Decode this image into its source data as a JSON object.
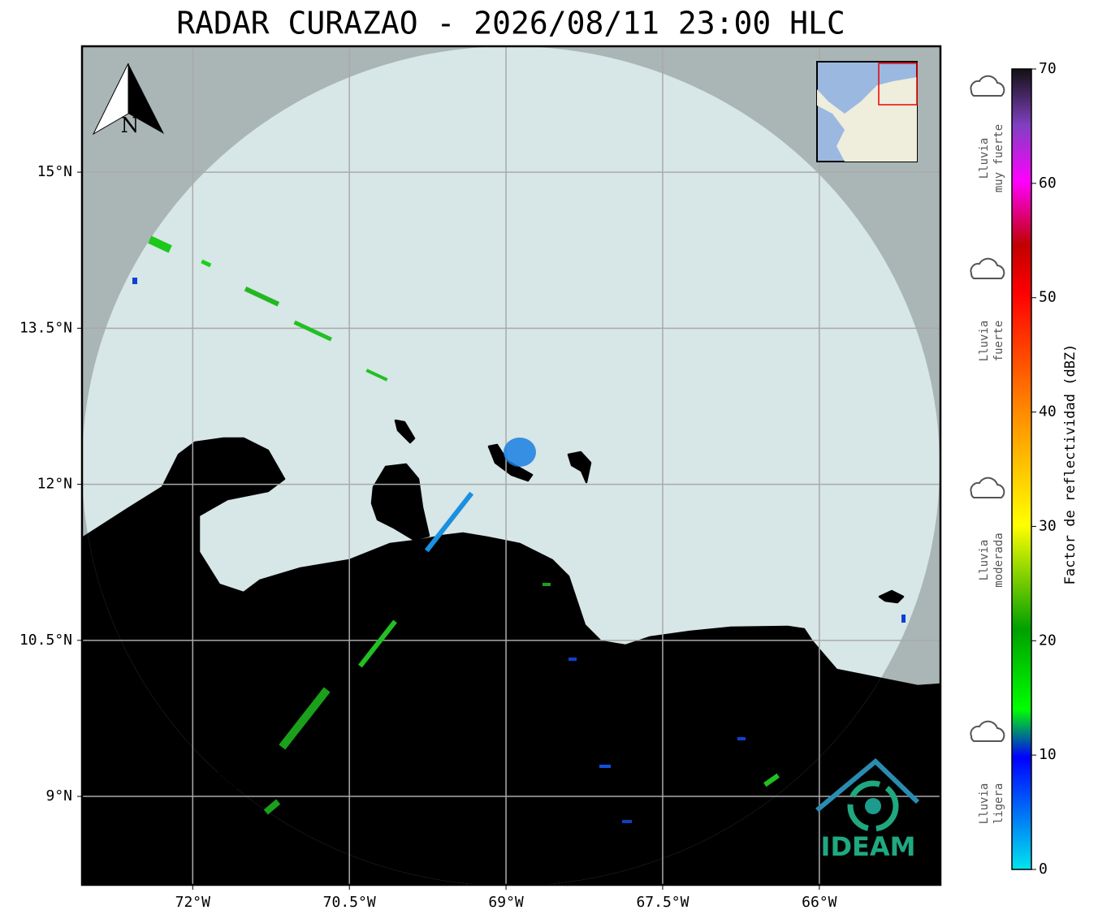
{
  "title": "RADAR CURAZAO - 2026/08/11 23:00 HLC",
  "map": {
    "xlim": [
      -73.06,
      -64.84
    ],
    "ylim": [
      8.15,
      16.21
    ],
    "xticks": [
      {
        "value": -72,
        "label": "72°W"
      },
      {
        "value": -70.5,
        "label": "70.5°W"
      },
      {
        "value": -69,
        "label": "69°W"
      },
      {
        "value": -67.5,
        "label": "67.5°W"
      },
      {
        "value": -66,
        "label": "66°W"
      }
    ],
    "yticks": [
      {
        "value": 9,
        "label": "9°N"
      },
      {
        "value": 10.5,
        "label": "10.5°N"
      },
      {
        "value": 12,
        "label": "12°N"
      },
      {
        "value": 13.5,
        "label": "13.5°N"
      },
      {
        "value": 15,
        "label": "15°N"
      }
    ]
  },
  "north_label": "N",
  "colorbar": {
    "label": "Factor de reflectividad (dBZ)",
    "lim": [
      0,
      70
    ],
    "ticks": [
      0,
      10,
      20,
      30,
      40,
      50,
      60,
      70
    ]
  },
  "legend": [
    {
      "lines": [
        "Lluvia",
        "muy fuerte"
      ]
    },
    {
      "lines": [
        "Lluvia",
        "fuerte"
      ]
    },
    {
      "lines": [
        "Lluvia",
        "moderada"
      ]
    },
    {
      "lines": [
        "Lluvia",
        "ligera"
      ]
    }
  ],
  "logo": "IDEAM"
}
